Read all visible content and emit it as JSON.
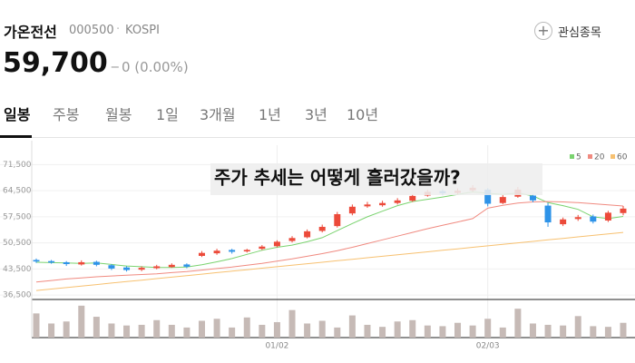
{
  "header": {
    "name": "가온전선",
    "code": "000500",
    "market": "KOSPI",
    "watch": "관심종목",
    "price": "59,700",
    "change": "0 (0.00%)"
  },
  "tabs": [
    "일봉",
    "주봉",
    "월봉",
    "1일",
    "3개월",
    "1년",
    "3년",
    "10년"
  ],
  "chart_data": {
    "type": "candlestick",
    "annotation": "주가 추세는 어떻게 흘러갔을까?",
    "categories": [
      null,
      null,
      null,
      null,
      null,
      null,
      null,
      null,
      null,
      null,
      null,
      null,
      null,
      null,
      null,
      null,
      "01/02",
      null,
      null,
      null,
      null,
      null,
      null,
      null,
      null,
      null,
      null,
      null,
      null,
      null,
      "02/03",
      null,
      null,
      null,
      null,
      null,
      null,
      null,
      null,
      null
    ],
    "open": [
      45900,
      45600,
      45300,
      44700,
      45400,
      44500,
      43900,
      43300,
      43700,
      44000,
      44700,
      47000,
      47700,
      48600,
      48200,
      48900,
      49600,
      51000,
      52000,
      53700,
      55000,
      58400,
      60300,
      60600,
      61200,
      61800,
      63200,
      64400,
      63900,
      64600,
      64800,
      61200,
      62900,
      63200,
      60500,
      55500,
      56900,
      57600,
      56500,
      58500
    ],
    "high": [
      46300,
      45900,
      45600,
      45800,
      45700,
      44800,
      44200,
      44200,
      44600,
      45000,
      45000,
      48300,
      48900,
      48900,
      48900,
      49900,
      51200,
      52300,
      54100,
      55400,
      58800,
      60800,
      61500,
      61800,
      62500,
      63600,
      64800,
      64900,
      65100,
      66000,
      65200,
      63300,
      65500,
      63600,
      61200,
      57300,
      58000,
      58100,
      59100,
      60400
    ],
    "low": [
      45100,
      44900,
      44300,
      44400,
      44200,
      43200,
      42800,
      42900,
      43400,
      43800,
      43700,
      46700,
      47300,
      47600,
      47900,
      48600,
      49300,
      50600,
      51700,
      53300,
      54600,
      57900,
      59900,
      60200,
      60800,
      61500,
      62900,
      63300,
      63500,
      64200,
      60300,
      60900,
      62600,
      61400,
      54800,
      55000,
      56400,
      55700,
      56100,
      57900
    ],
    "close": [
      45500,
      45200,
      44800,
      45300,
      44600,
      43600,
      43200,
      43800,
      44200,
      44600,
      44100,
      47800,
      48400,
      48100,
      48600,
      49500,
      50800,
      51800,
      53600,
      54800,
      58200,
      60200,
      60800,
      61200,
      61900,
      63100,
      64200,
      63800,
      64500,
      65300,
      61000,
      62800,
      64800,
      61900,
      56000,
      56800,
      57400,
      56200,
      58600,
      59700
    ],
    "up_color": "#ec4a3a",
    "down_color": "#2e93e8",
    "series": [
      {
        "name": "5",
        "color": "#7ad36f",
        "values": [
          45300,
          45200,
          45100,
          45000,
          45100,
          44700,
          44300,
          44100,
          43900,
          43900,
          44000,
          44600,
          45400,
          46300,
          47400,
          48500,
          49300,
          49900,
          50800,
          51900,
          53800,
          55700,
          57500,
          59000,
          60500,
          61600,
          62200,
          62800,
          63500,
          64200,
          63800,
          63500,
          63900,
          63100,
          61300,
          60500,
          59500,
          57500,
          57000,
          57600
        ]
      },
      {
        "name": "20",
        "color": "#f08a80",
        "values": [
          40000,
          40400,
          40800,
          41100,
          41400,
          41600,
          41800,
          42000,
          42200,
          42500,
          42800,
          43200,
          43600,
          44000,
          44500,
          45000,
          45600,
          46200,
          46900,
          47600,
          48400,
          49300,
          50300,
          51300,
          52300,
          53300,
          54300,
          55200,
          56100,
          57000,
          59800,
          60600,
          61200,
          61500,
          61600,
          61500,
          61300,
          61000,
          60700,
          60400
        ]
      },
      {
        "name": "60",
        "color": "#f7c171",
        "values": [
          37700,
          38100,
          38500,
          38900,
          39300,
          39700,
          40100,
          40500,
          40900,
          41300,
          41700,
          42100,
          42500,
          42900,
          43300,
          43700,
          44100,
          44500,
          44900,
          45300,
          45700,
          46100,
          46500,
          46900,
          47300,
          47700,
          48100,
          48500,
          48900,
          49300,
          49700,
          50100,
          50500,
          50900,
          51300,
          51700,
          52100,
          52500,
          52900,
          53300
        ]
      }
    ],
    "ylim": [
      35300,
      75500
    ],
    "yticks": [
      {
        "value": 36500,
        "label": "36,500"
      },
      {
        "value": 43500,
        "label": "43,500"
      },
      {
        "value": 50500,
        "label": "50,500"
      },
      {
        "value": 57500,
        "label": "57,500"
      },
      {
        "value": 64500,
        "label": "64,500"
      },
      {
        "value": 71500,
        "label": "71,500"
      }
    ],
    "grid": true,
    "volume": {
      "color": "#c6bab6",
      "ylim": [
        0,
        1000
      ],
      "values": [
        720,
        420,
        480,
        950,
        620,
        420,
        360,
        380,
        520,
        380,
        300,
        500,
        560,
        300,
        600,
        380,
        460,
        820,
        420,
        500,
        300,
        660,
        380,
        320,
        480,
        520,
        360,
        340,
        440,
        360,
        560,
        300,
        860,
        420,
        380,
        360,
        640,
        340,
        320,
        440
      ]
    }
  }
}
